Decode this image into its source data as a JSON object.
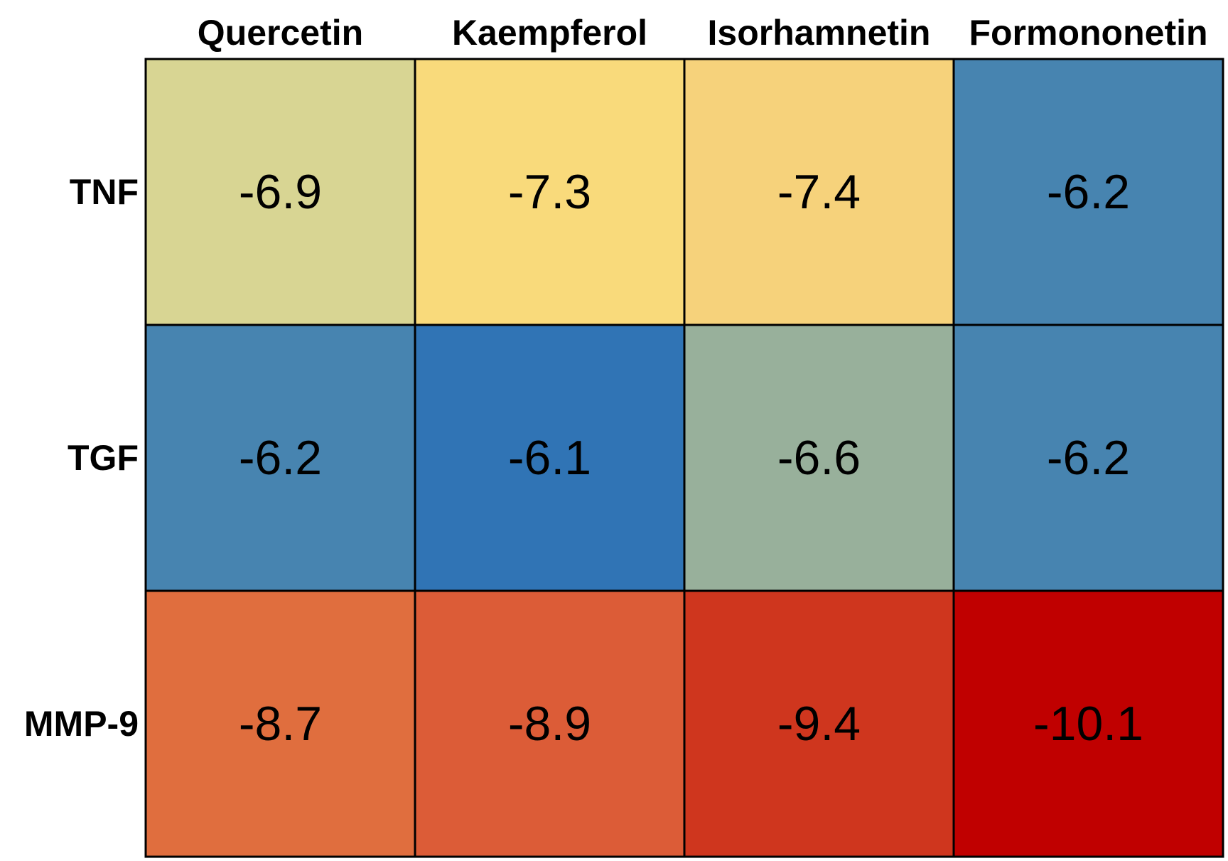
{
  "chart_data": {
    "type": "heatmap",
    "title": "",
    "xlabel": "",
    "ylabel": "",
    "columns": [
      "Quercetin",
      "Kaempferol",
      "Isorhamnetin",
      "Formononetin"
    ],
    "rows": [
      "TNF",
      "TGF",
      "MMP-9"
    ],
    "values": [
      [
        -6.9,
        -7.3,
        -7.4,
        -6.2
      ],
      [
        -6.2,
        -6.1,
        -6.6,
        -6.2
      ],
      [
        -8.7,
        -8.9,
        -9.4,
        -10.1
      ]
    ],
    "value_labels": [
      [
        "-6.9",
        "-7.3",
        "-7.4",
        "-6.2"
      ],
      [
        "-6.2",
        "-6.1",
        "-6.6",
        "-6.2"
      ],
      [
        "-8.7",
        "-8.9",
        "-9.4",
        "-10.1"
      ]
    ],
    "color_scale": {
      "stops": [
        {
          "value": -10.1,
          "color": "#c00000"
        },
        {
          "value": -9.4,
          "color": "#cf361e"
        },
        {
          "value": -8.9,
          "color": "#dc5c37"
        },
        {
          "value": -8.7,
          "color": "#e06e3e"
        },
        {
          "value": -7.4,
          "color": "#f6d27b"
        },
        {
          "value": -7.3,
          "color": "#f9da7b"
        },
        {
          "value": -6.9,
          "color": "#d8d593"
        },
        {
          "value": -6.6,
          "color": "#98b09b"
        },
        {
          "value": -6.2,
          "color": "#4784b0"
        },
        {
          "value": -6.1,
          "color": "#3074b5"
        }
      ]
    },
    "legend": "none",
    "grid": true
  }
}
